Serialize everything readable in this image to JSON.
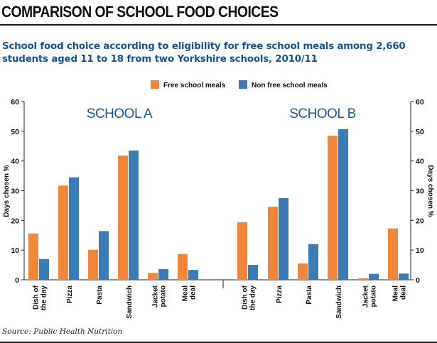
{
  "headline": "COMPARISON OF SCHOOL FOOD CHOICES",
  "subtitle_lines": [
    "School food choice according to eligibility for free school meals among 2,660",
    "students aged 11 to 18 from two Yorkshire schools, 2010/11"
  ],
  "source": "Source: Public Health Nutrition",
  "colors": {
    "free": "#f0863a",
    "nonfree": "#3c7ab4",
    "subtitle": "#16558a"
  },
  "chart_data": {
    "type": "bar",
    "ylabel": "Days chosen %",
    "ylabel_right": "Days chosen %",
    "ylim": [
      0,
      60
    ],
    "yticks": [
      0,
      10,
      20,
      30,
      40,
      50,
      60
    ],
    "grid": false,
    "legend_position": "top-center",
    "series_names": [
      "Free school meals",
      "Non free school meals"
    ],
    "panels": [
      {
        "name": "SCHOOL A",
        "categories": [
          [
            "Dish of",
            "the day"
          ],
          [
            "Pizza"
          ],
          [
            "Pasta"
          ],
          [
            "Sandwich"
          ],
          [
            "Jacket",
            "potato"
          ],
          [
            "Meal",
            "deal"
          ]
        ],
        "series": [
          {
            "name": "Free school meals",
            "values": [
              15.6,
              31.7,
              10.1,
              41.8,
              2.3,
              8.7
            ]
          },
          {
            "name": "Non free school meals",
            "values": [
              7.0,
              34.5,
              16.4,
              43.5,
              3.6,
              3.3
            ]
          }
        ]
      },
      {
        "name": "SCHOOL B",
        "categories": [
          [
            "Dish of",
            "the day"
          ],
          [
            "Pizza"
          ],
          [
            "Pasta"
          ],
          [
            "Sandwich"
          ],
          [
            "Jacket",
            "potato"
          ],
          [
            "Meal",
            "deal"
          ]
        ],
        "series": [
          {
            "name": "Free school meals",
            "values": [
              19.4,
              24.6,
              5.5,
              48.5,
              0.5,
              17.3
            ]
          },
          {
            "name": "Non free school meals",
            "values": [
              5.0,
              27.5,
              12.0,
              50.7,
              2.0,
              2.1
            ]
          }
        ]
      }
    ]
  }
}
